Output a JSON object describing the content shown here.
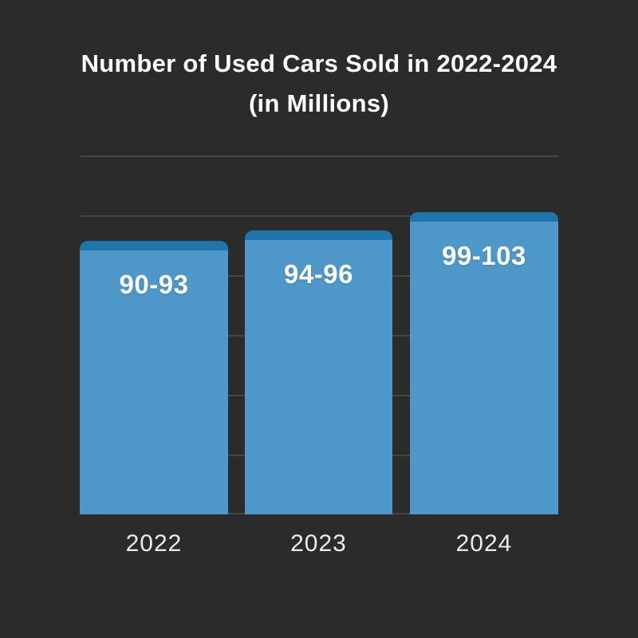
{
  "title": {
    "line1": "Number of Used Cars Sold in 2022-2024",
    "line2": "(in Millions)"
  },
  "chart_data": {
    "type": "bar",
    "title": "Number of Used Cars Sold in 2022-2024 (in Millions)",
    "categories": [
      "2022",
      "2023",
      "2024"
    ],
    "values": [
      91.5,
      95,
      101
    ],
    "value_labels": [
      "90-93",
      "94-96",
      "99-103"
    ],
    "xlabel": "",
    "ylabel": "",
    "ylim": [
      0,
      120
    ],
    "gridline_interval": 20,
    "grid": "horizontal-only",
    "legend": "none",
    "colors": {
      "background": "#2b2b2b",
      "bar_body": "#4d98c9",
      "bar_cap": "#1e76ad",
      "gridline": "#454545",
      "title_text": "#ffffff",
      "value_text": "#ffffff",
      "axis_text": "#ececec"
    }
  }
}
